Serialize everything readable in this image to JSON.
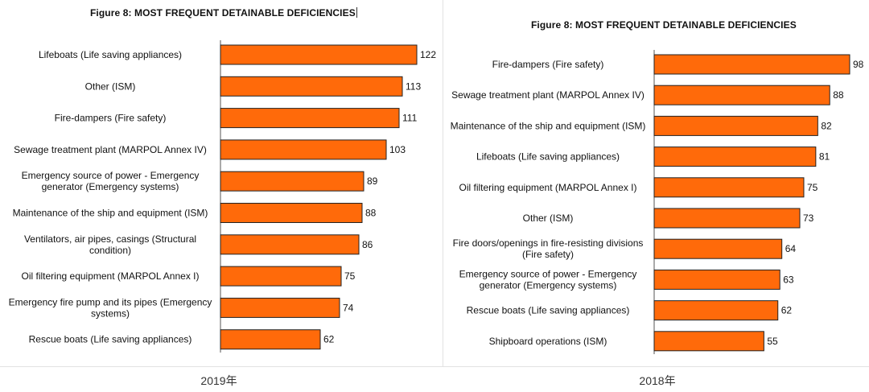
{
  "chart_data": [
    {
      "type": "bar",
      "orientation": "horizontal",
      "title": "Figure 8: MOST FREQUENT DETAINABLE DEFICIENCIES",
      "caption": "2019年",
      "categories": [
        "Lifeboats (Life saving appliances)",
        "Other (ISM)",
        "Fire-dampers (Fire safety)",
        "Sewage treatment plant (MARPOL Annex IV)",
        "Emergency source of power - Emergency generator (Emergency systems)",
        "Maintenance of the ship and equipment (ISM)",
        "Ventilators, air pipes, casings (Structural condition)",
        "Oil filtering equipment (MARPOL Annex I)",
        "Emergency fire pump and its pipes (Emergency systems)",
        "Rescue boats (Life saving appliances)"
      ],
      "category_lines": [
        [
          "Lifeboats (Life saving appliances)"
        ],
        [
          "Other (ISM)"
        ],
        [
          "Fire-dampers (Fire safety)"
        ],
        [
          "Sewage treatment plant (MARPOL Annex IV)"
        ],
        [
          "Emergency source of power - Emergency",
          "generator (Emergency systems)"
        ],
        [
          "Maintenance of the ship and equipment (ISM)"
        ],
        [
          "Ventilators, air pipes, casings (Structural",
          "condition)"
        ],
        [
          "Oil filtering equipment (MARPOL Annex I)"
        ],
        [
          "Emergency fire pump and its pipes (Emergency",
          "systems)"
        ],
        [
          "Rescue boats (Life saving appliances)"
        ]
      ],
      "values": [
        122,
        113,
        111,
        103,
        89,
        88,
        86,
        75,
        74,
        62
      ],
      "xlim": [
        0,
        122
      ],
      "grid": false,
      "bar_color": "#FF6A0A"
    },
    {
      "type": "bar",
      "orientation": "horizontal",
      "title": "Figure 8: MOST FREQUENT DETAINABLE DEFICIENCIES",
      "caption": "2018年",
      "categories": [
        "Fire-dampers (Fire safety)",
        "Sewage treatment plant (MARPOL Annex IV)",
        "Maintenance of the ship and equipment (ISM)",
        "Lifeboats (Life saving appliances)",
        "Oil filtering equipment (MARPOL Annex I)",
        "Other (ISM)",
        "Fire doors/openings in fire-resisting divisions (Fire safety)",
        "Emergency source of power - Emergency generator (Emergency systems)",
        "Rescue boats (Life saving appliances)",
        "Shipboard operations (ISM)"
      ],
      "category_lines": [
        [
          "Fire-dampers (Fire safety)"
        ],
        [
          "Sewage treatment plant (MARPOL Annex IV)"
        ],
        [
          "Maintenance of the ship and equipment (ISM)"
        ],
        [
          "Lifeboats (Life saving appliances)"
        ],
        [
          "Oil filtering equipment (MARPOL Annex I)"
        ],
        [
          "Other (ISM)"
        ],
        [
          "Fire doors/openings in fire-resisting divisions",
          "(Fire safety)"
        ],
        [
          "Emergency source of power - Emergency",
          "generator (Emergency systems)"
        ],
        [
          "Rescue boats (Life saving appliances)"
        ],
        [
          "Shipboard operations (ISM)"
        ]
      ],
      "values": [
        98,
        88,
        82,
        81,
        75,
        73,
        64,
        63,
        62,
        55
      ],
      "xlim": [
        0,
        98
      ],
      "grid": false,
      "bar_color": "#FF6A0A"
    }
  ]
}
